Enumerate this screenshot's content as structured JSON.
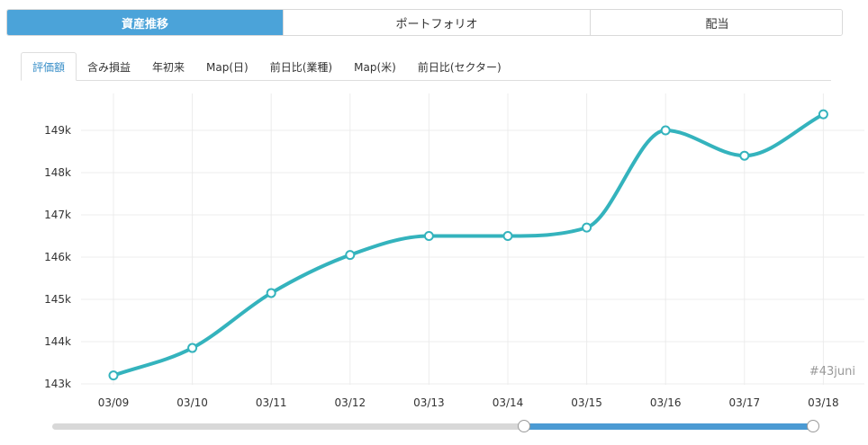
{
  "top_tabs": [
    {
      "label": "資産推移",
      "active": true
    },
    {
      "label": "ポートフォリオ",
      "active": false
    },
    {
      "label": "配当",
      "active": false
    }
  ],
  "sub_tabs": [
    {
      "label": "評価額",
      "active": true
    },
    {
      "label": "含み損益",
      "active": false
    },
    {
      "label": "年初来",
      "active": false
    },
    {
      "label": "Map(日)",
      "active": false
    },
    {
      "label": "前日比(業種)",
      "active": false
    },
    {
      "label": "Map(米)",
      "active": false
    },
    {
      "label": "前日比(セクター)",
      "active": false
    }
  ],
  "chart_data": {
    "type": "line",
    "categories": [
      "03/09",
      "03/10",
      "03/11",
      "03/12",
      "03/13",
      "03/14",
      "03/15",
      "03/16",
      "03/17",
      "03/18"
    ],
    "series": [
      {
        "values": [
          143200,
          143850,
          145150,
          146050,
          146500,
          146500,
          146700,
          149000,
          148400,
          149380
        ]
      }
    ],
    "yticks": [
      "143k",
      "144k",
      "145k",
      "146k",
      "147k",
      "148k",
      "149k"
    ],
    "ytick_values": [
      143000,
      144000,
      145000,
      146000,
      147000,
      148000,
      149000
    ],
    "ylim": [
      143000,
      149600
    ],
    "grid": true,
    "line_color": "#34b3bd",
    "watermark": "#43juni"
  },
  "slider": {
    "range_start": 0.62,
    "range_end": 1.0,
    "fill_color": "#4b9ad3"
  }
}
